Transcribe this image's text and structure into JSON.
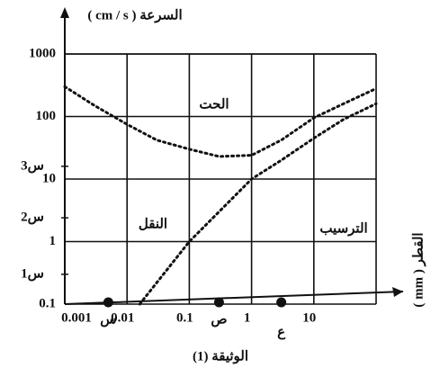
{
  "chart_data": {
    "type": "line",
    "y_label": "السرعة ( cm / s )",
    "x_label": "القطر ( mm )",
    "caption": "الوثيقة (1)",
    "log_x": true,
    "log_y": true,
    "grid": true,
    "xlim": [
      0.001,
      100
    ],
    "xticks": [
      0.001,
      0.01,
      0.1,
      1,
      10
    ],
    "ylim": [
      0.1,
      1000
    ],
    "yticks": [
      0.1,
      1,
      10,
      100,
      1000
    ],
    "series": [
      {
        "name": "erosion",
        "color": "#111111",
        "x": [
          0.001,
          0.003,
          0.01,
          0.03,
          0.1,
          0.3,
          1,
          3,
          10,
          30,
          100
        ],
        "values": [
          300,
          150,
          75,
          42,
          30,
          23,
          24,
          42,
          95,
          160,
          280
        ]
      },
      {
        "name": "deposition",
        "color": "#111111",
        "x": [
          0.016,
          0.1,
          1,
          3,
          10,
          30,
          100
        ],
        "values": [
          0.1,
          1,
          10,
          20,
          45,
          90,
          160
        ]
      }
    ],
    "annotations": [
      "الحت",
      "النقل",
      "الترسيب"
    ],
    "y_markers": [
      {
        "label": "س1",
        "value": 0.3
      },
      {
        "label": "س2",
        "value": 2.4
      },
      {
        "label": "س3",
        "value": 16
      }
    ],
    "x_markers": [
      {
        "label": "س",
        "value": 0.005
      },
      {
        "label": "ص",
        "value": 0.3
      },
      {
        "label": "ع",
        "value": 3
      }
    ]
  }
}
